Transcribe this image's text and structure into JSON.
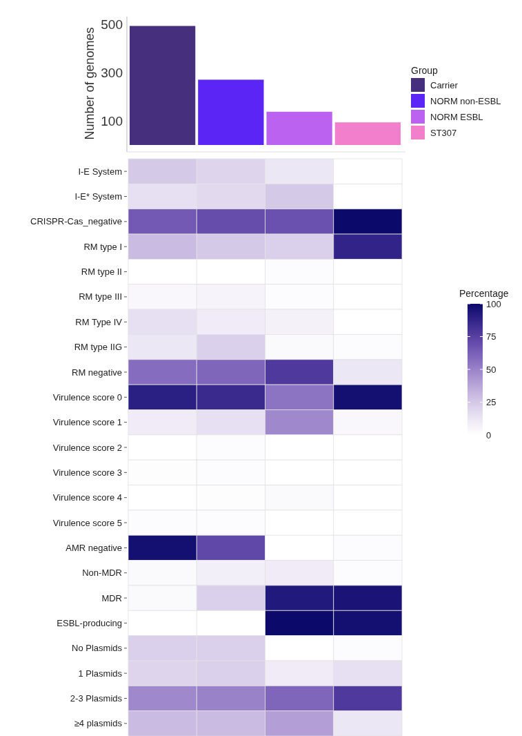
{
  "chart_data": [
    {
      "type": "bar",
      "stacked": true,
      "ylabel": "Number of genomes",
      "legend_title": "Group",
      "legend": "right",
      "categories": [
        null,
        null,
        null,
        null
      ],
      "ylim": [
        0,
        510
      ],
      "yticks": [
        100,
        300,
        500
      ],
      "series": [
        {
          "name": "Carrier",
          "color": "#46307e",
          "values": [
            494,
            null,
            null,
            null
          ]
        },
        {
          "name": "NORM non-ESBL",
          "color": "#5a25f5",
          "values": [
            null,
            271,
            null,
            null
          ]
        },
        {
          "name": "NORM ESBL",
          "color": "#bb62f0",
          "values": [
            null,
            null,
            138,
            null
          ]
        },
        {
          "name": "ST307",
          "color": "#f27fcc",
          "values": [
            null,
            null,
            null,
            94
          ]
        }
      ]
    },
    {
      "type": "heatmap",
      "clabel": "Percentage",
      "categories": [
        null,
        null,
        null,
        null
      ],
      "y_categories": [
        "I-E System",
        "I-E* System",
        "CRISPR-Cas_negative",
        "RM type I",
        "RM type II",
        "RM type III",
        "RM Type IV",
        "RM type IIG",
        "RM negative",
        "Virulence score 0",
        "Virulence score 1",
        "Virulence score 2",
        "Virulence score 3",
        "Virulence score 4",
        "Virulence score 5",
        "AMR negative",
        "Non-MDR",
        "MDR",
        "ESBL-producing",
        "No Plasmids",
        "1 Plasmids",
        "2-3 Plasmids",
        "≥4 plasmids"
      ],
      "clim": [
        0,
        100
      ],
      "cticks": [
        0,
        25,
        50,
        75,
        100
      ],
      "cells": [
        [
          25,
          20,
          12,
          0
        ],
        [
          15,
          18,
          25,
          0
        ],
        [
          65,
          70,
          68,
          100
        ],
        [
          30,
          25,
          22,
          88
        ],
        [
          0,
          0,
          2,
          0
        ],
        [
          4,
          6,
          2,
          0
        ],
        [
          15,
          10,
          7,
          0
        ],
        [
          12,
          22,
          3,
          2
        ],
        [
          58,
          60,
          78,
          12
        ],
        [
          90,
          85,
          55,
          97
        ],
        [
          10,
          15,
          48,
          4
        ],
        [
          0,
          2,
          0,
          0
        ],
        [
          1,
          2,
          0,
          0
        ],
        [
          0,
          1,
          3,
          0
        ],
        [
          2,
          2,
          0,
          0
        ],
        [
          97,
          72,
          0,
          2
        ],
        [
          3,
          8,
          10,
          2
        ],
        [
          3,
          22,
          93,
          95
        ],
        [
          0,
          0,
          100,
          97
        ],
        [
          22,
          22,
          0,
          2
        ],
        [
          20,
          22,
          10,
          15
        ],
        [
          48,
          50,
          60,
          78
        ],
        [
          30,
          30,
          40,
          12
        ]
      ]
    }
  ]
}
